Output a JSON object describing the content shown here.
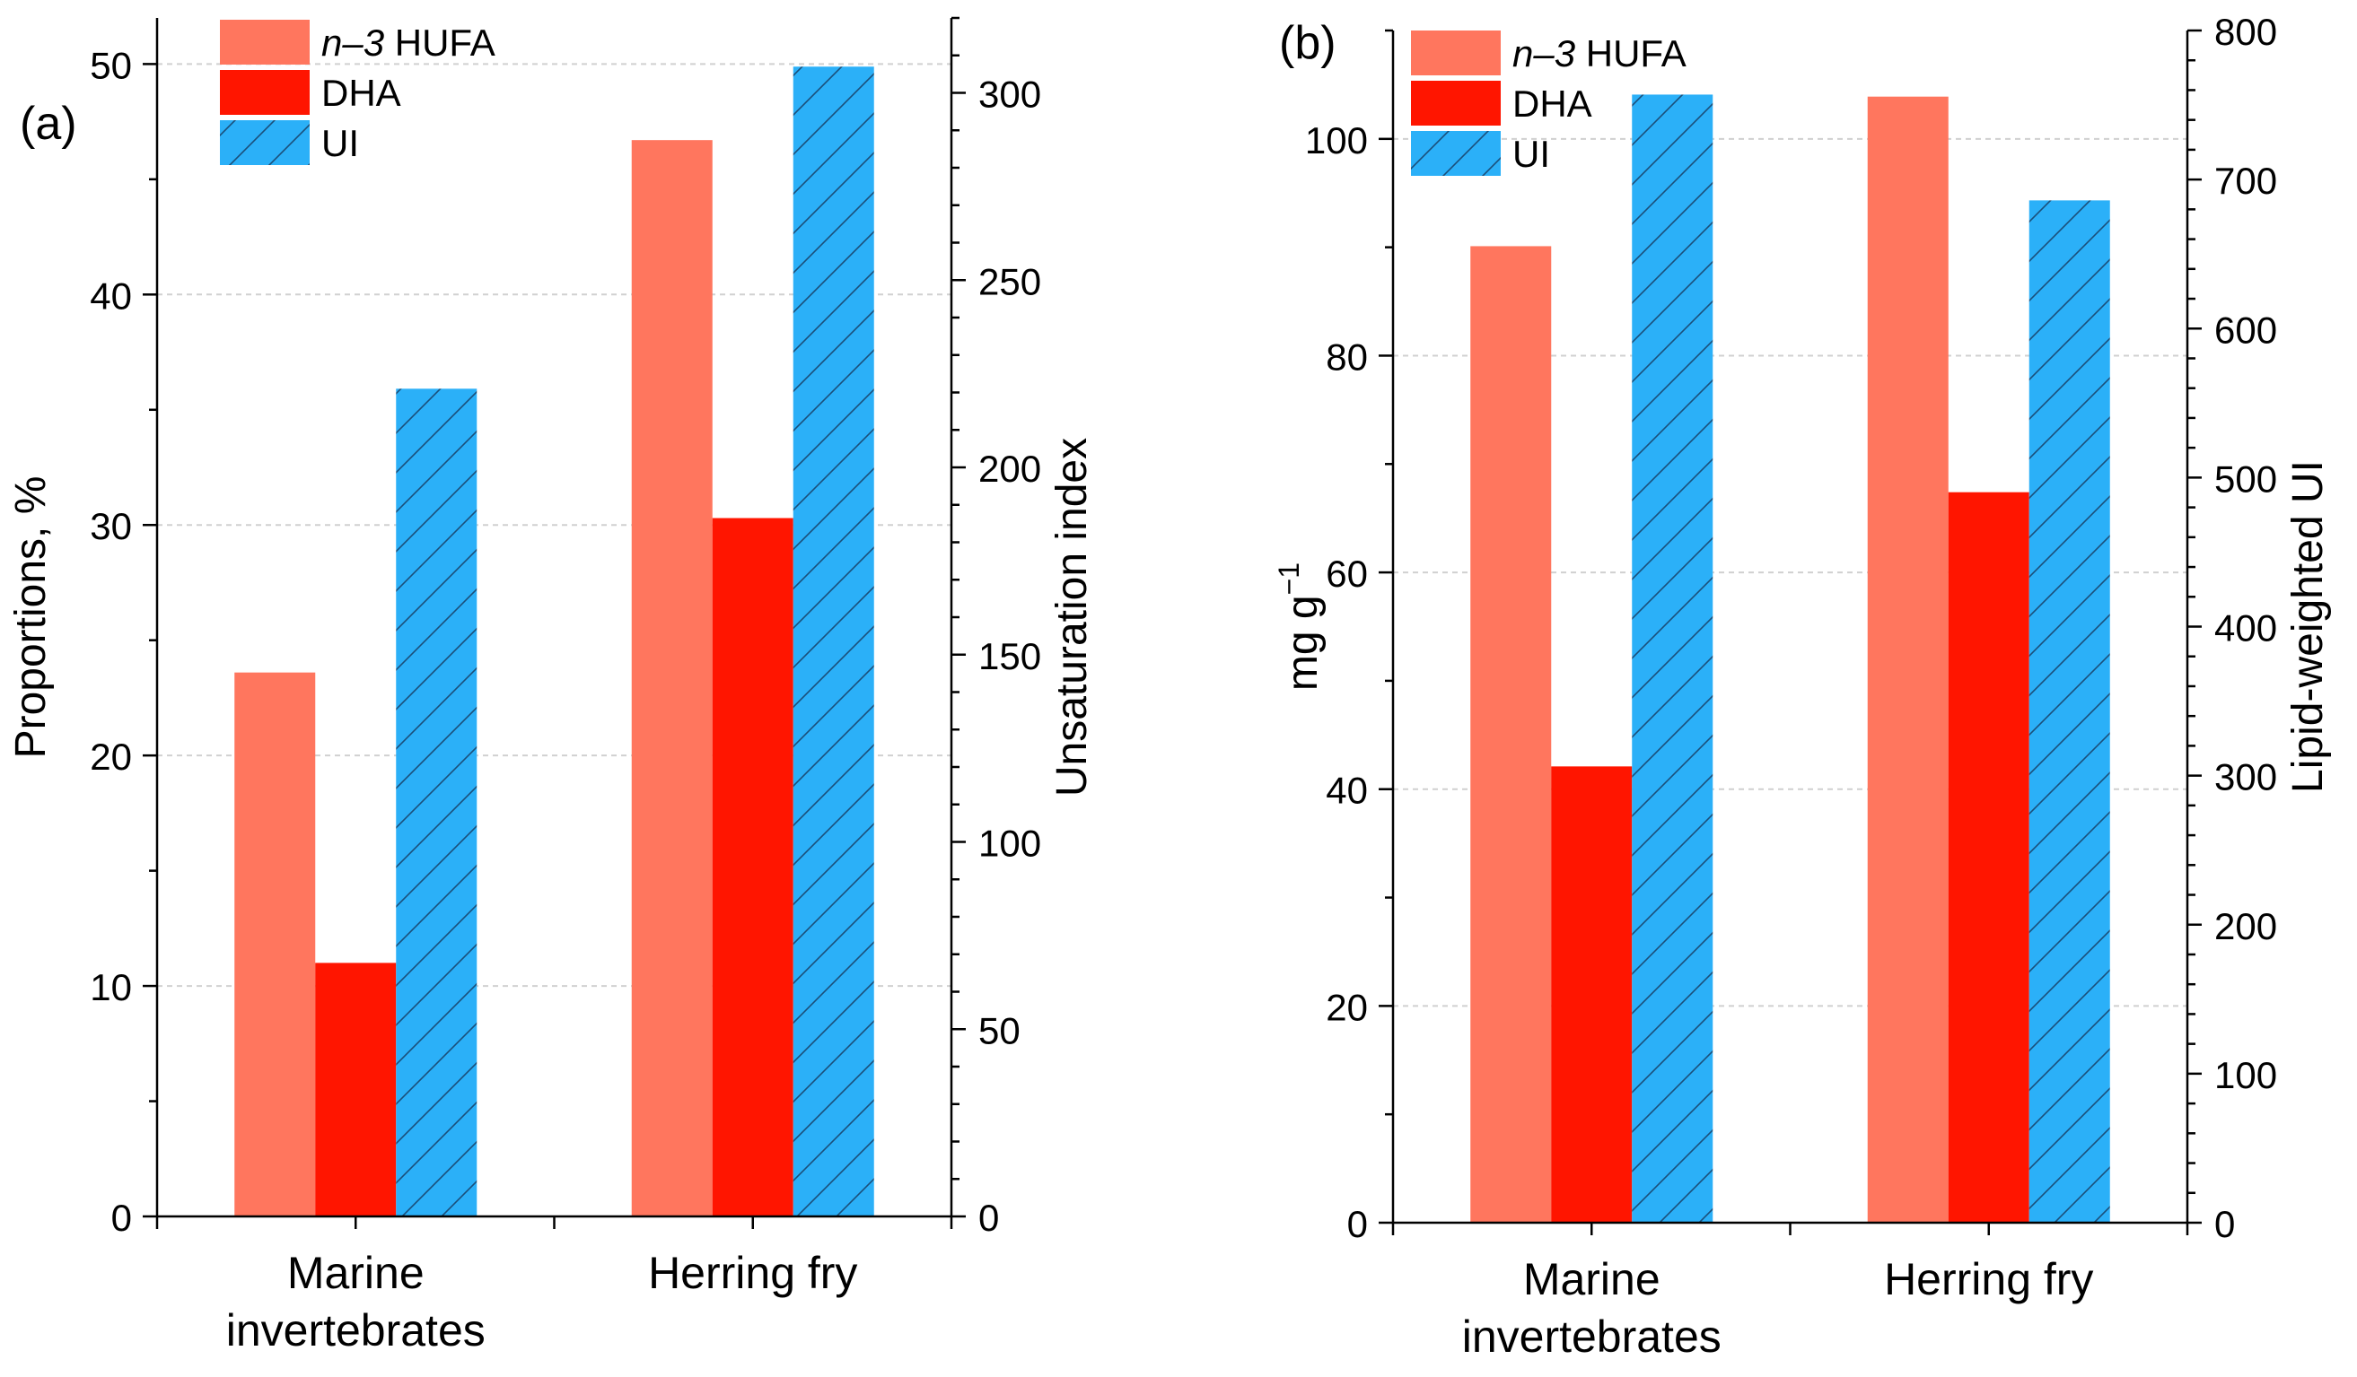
{
  "colors": {
    "hufa": "#FF765E",
    "dha": "#FF1500",
    "ui": "#2BB0F8",
    "hatch": "#1a4f7a"
  },
  "legend": {
    "hufa_italic": "n–3",
    "hufa_rest": " HUFA",
    "dha": "DHA",
    "ui": "UI"
  },
  "chart_data": [
    {
      "type": "bar",
      "panel_label": "(a)",
      "categories": [
        [
          "Marine",
          "invertebrates"
        ],
        [
          "Herring fry"
        ]
      ],
      "ylabel": "Proportions, %",
      "ylabel2": "Unsaturation index",
      "ylim": [
        0,
        52
      ],
      "ylim2": [
        0,
        320
      ],
      "yticks": [
        0,
        10,
        20,
        30,
        40,
        50
      ],
      "yticks2": [
        0,
        50,
        100,
        150,
        200,
        250,
        300
      ],
      "grid": true,
      "legend_position": "top-left",
      "series": [
        {
          "name": "n–3 HUFA",
          "axis": "left",
          "values": [
            23.6,
            46.7
          ]
        },
        {
          "name": "DHA",
          "axis": "left",
          "values": [
            11.0,
            30.3
          ]
        },
        {
          "name": "UI",
          "axis": "right",
          "values": [
            221,
            307
          ]
        }
      ]
    },
    {
      "type": "bar",
      "panel_label": "(b)",
      "categories": [
        [
          "Marine",
          "invertebrates"
        ],
        [
          "Herring fry"
        ]
      ],
      "ylabel": "mg g",
      "ylabel_sup": "−1",
      "ylabel2": "Lipid-weighted UI",
      "ylim": [
        0,
        110
      ],
      "ylim2": [
        0,
        800
      ],
      "yticks": [
        0,
        20,
        40,
        60,
        80,
        100
      ],
      "yticks2": [
        0,
        100,
        200,
        300,
        400,
        500,
        600,
        700,
        800
      ],
      "grid": true,
      "legend_position": "top-left",
      "series": [
        {
          "name": "n–3 HUFA",
          "axis": "left",
          "values": [
            90.1,
            103.9
          ]
        },
        {
          "name": "DHA",
          "axis": "left",
          "values": [
            42.1,
            67.4
          ]
        },
        {
          "name": "UI",
          "axis": "right",
          "values": [
            757,
            686
          ]
        }
      ]
    }
  ]
}
